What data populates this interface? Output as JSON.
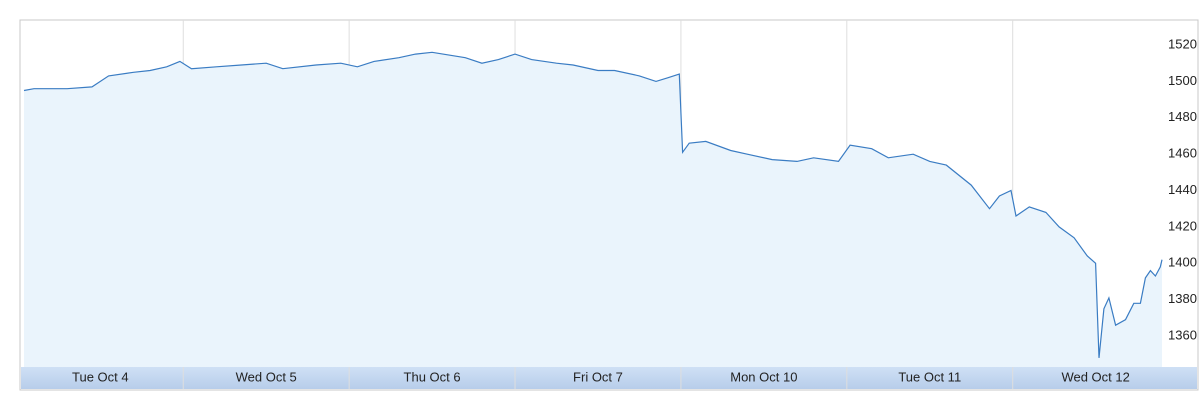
{
  "chart_data": {
    "type": "area",
    "color": "#3a7cc3",
    "fill": "#eaf4fc",
    "grid": true,
    "x": [
      0.04,
      0.1,
      0.2,
      0.3,
      0.45,
      0.55,
      0.7,
      0.8,
      0.9,
      0.98,
      1.05,
      1.2,
      1.35,
      1.5,
      1.6,
      1.8,
      1.95,
      2.05,
      2.15,
      2.3,
      2.4,
      2.5,
      2.7,
      2.8,
      2.9,
      3.0,
      3.1,
      3.25,
      3.35,
      3.5,
      3.6,
      3.75,
      3.85,
      3.92,
      3.99,
      4.01,
      4.05,
      4.15,
      4.3,
      4.4,
      4.55,
      4.7,
      4.8,
      4.95,
      5.02,
      5.15,
      5.25,
      5.4,
      5.5,
      5.6,
      5.75,
      5.86,
      5.92,
      5.99,
      6.02,
      6.1,
      6.2,
      6.28,
      6.37,
      6.45,
      6.5,
      6.52,
      6.55,
      6.58,
      6.62,
      6.68,
      6.73,
      6.77,
      6.8,
      6.83,
      6.86,
      6.89,
      6.9
    ],
    "values": [
      1495,
      1496,
      1496,
      1496,
      1497,
      1503,
      1505,
      1506,
      1508,
      1511,
      1507,
      1508,
      1509,
      1510,
      1507,
      1509,
      1510,
      1508,
      1511,
      1513,
      1515,
      1516,
      1513,
      1510,
      1512,
      1515,
      1512,
      1510,
      1509,
      1506,
      1506,
      1503,
      1500,
      1502,
      1504,
      1461,
      1466,
      1467,
      1462,
      1460,
      1457,
      1456,
      1458,
      1456,
      1465,
      1463,
      1458,
      1460,
      1456,
      1454,
      1443,
      1430,
      1437,
      1440,
      1426,
      1431,
      1428,
      1420,
      1414,
      1404,
      1400,
      1348,
      1375,
      1381,
      1366,
      1369,
      1378,
      1378,
      1392,
      1396,
      1393,
      1398,
      1402
    ],
    "xlim": [
      0.04,
      6.9
    ],
    "xticks": [
      {
        "value": 0.5,
        "label": "Tue Oct 4"
      },
      {
        "value": 1.5,
        "label": "Wed Oct 5"
      },
      {
        "value": 2.5,
        "label": "Thu Oct 6"
      },
      {
        "value": 3.5,
        "label": "Fri Oct 7"
      },
      {
        "value": 4.5,
        "label": "Mon Oct 10"
      },
      {
        "value": 5.5,
        "label": "Tue Oct 11"
      },
      {
        "value": 6.5,
        "label": "Wed Oct 12"
      }
    ],
    "ylim": [
      1343,
      1531
    ],
    "yticks": [
      1360,
      1380,
      1400,
      1420,
      1440,
      1460,
      1480,
      1500,
      1520
    ]
  }
}
